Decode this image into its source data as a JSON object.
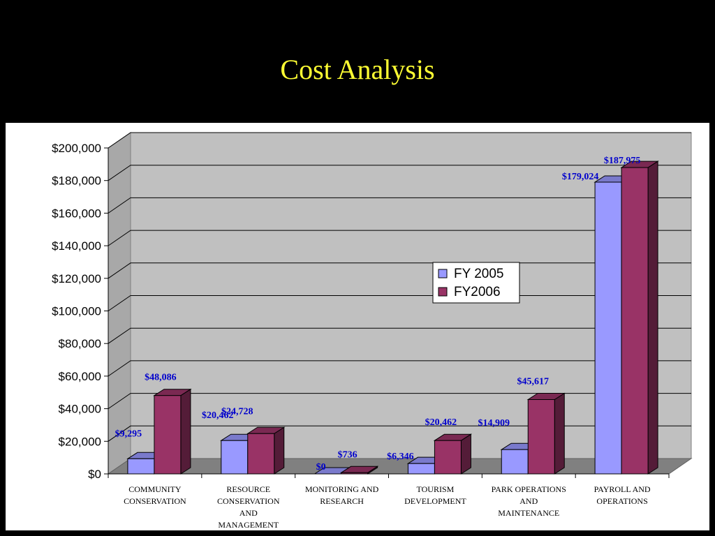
{
  "slide": {
    "title": "Cost Analysis"
  },
  "colors": {
    "background": "#000000",
    "title": "#FFFF33",
    "fy2005": "#9999FF",
    "fy2006": "#993366",
    "data_label": "#0000CC",
    "plot_wall": "#C0C0C0",
    "plot_floor": "#808080"
  },
  "chart_data": {
    "type": "bar",
    "subtype": "3d-clustered-column",
    "title": "Cost Analysis",
    "xlabel": "",
    "ylabel": "",
    "ylim": [
      0,
      200000
    ],
    "ytick_values": [
      0,
      20000,
      40000,
      60000,
      80000,
      100000,
      120000,
      140000,
      160000,
      180000,
      200000
    ],
    "ytick_labels": [
      "$0",
      "$20,000",
      "$40,000",
      "$60,000",
      "$80,000",
      "$100,000",
      "$120,000",
      "$140,000",
      "$160,000",
      "$180,000",
      "$200,000"
    ],
    "grid": true,
    "legend_position": "center-right",
    "categories": [
      "COMMUNITY CONSERVATION",
      "RESOURCE CONSERVATION AND MANAGEMENT",
      "MONITORING AND RESEARCH",
      "TOURISM DEVELOPMENT",
      "PARK OPERATIONS AND MAINTENANCE",
      "PAYROLL AND OPERATIONS"
    ],
    "category_label_lines": [
      [
        "COMMUNITY",
        "CONSERVATION"
      ],
      [
        "RESOURCE",
        "CONSERVATION",
        "AND",
        "MANAGEMENT"
      ],
      [
        "MONITORING AND",
        "RESEARCH"
      ],
      [
        "TOURISM",
        "DEVELOPMENT"
      ],
      [
        "PARK OPERATIONS",
        "AND",
        "MAINTENANCE"
      ],
      [
        "PAYROLL AND",
        "OPERATIONS"
      ]
    ],
    "series": [
      {
        "name": "FY 2005",
        "color": "#9999FF",
        "values": [
          9295,
          20462,
          0,
          6346,
          14909,
          179024
        ],
        "data_labels": [
          "$9,295",
          "$20,462",
          "$0",
          "$6,346",
          "$14,909",
          "$179,024"
        ]
      },
      {
        "name": "FY2006",
        "color": "#993366",
        "values": [
          48086,
          24728,
          736,
          20462,
          45617,
          187975
        ],
        "data_labels": [
          "$48,086",
          "$24,728",
          "$736",
          "$20,462",
          "$45,617",
          "$187,975"
        ]
      }
    ]
  }
}
